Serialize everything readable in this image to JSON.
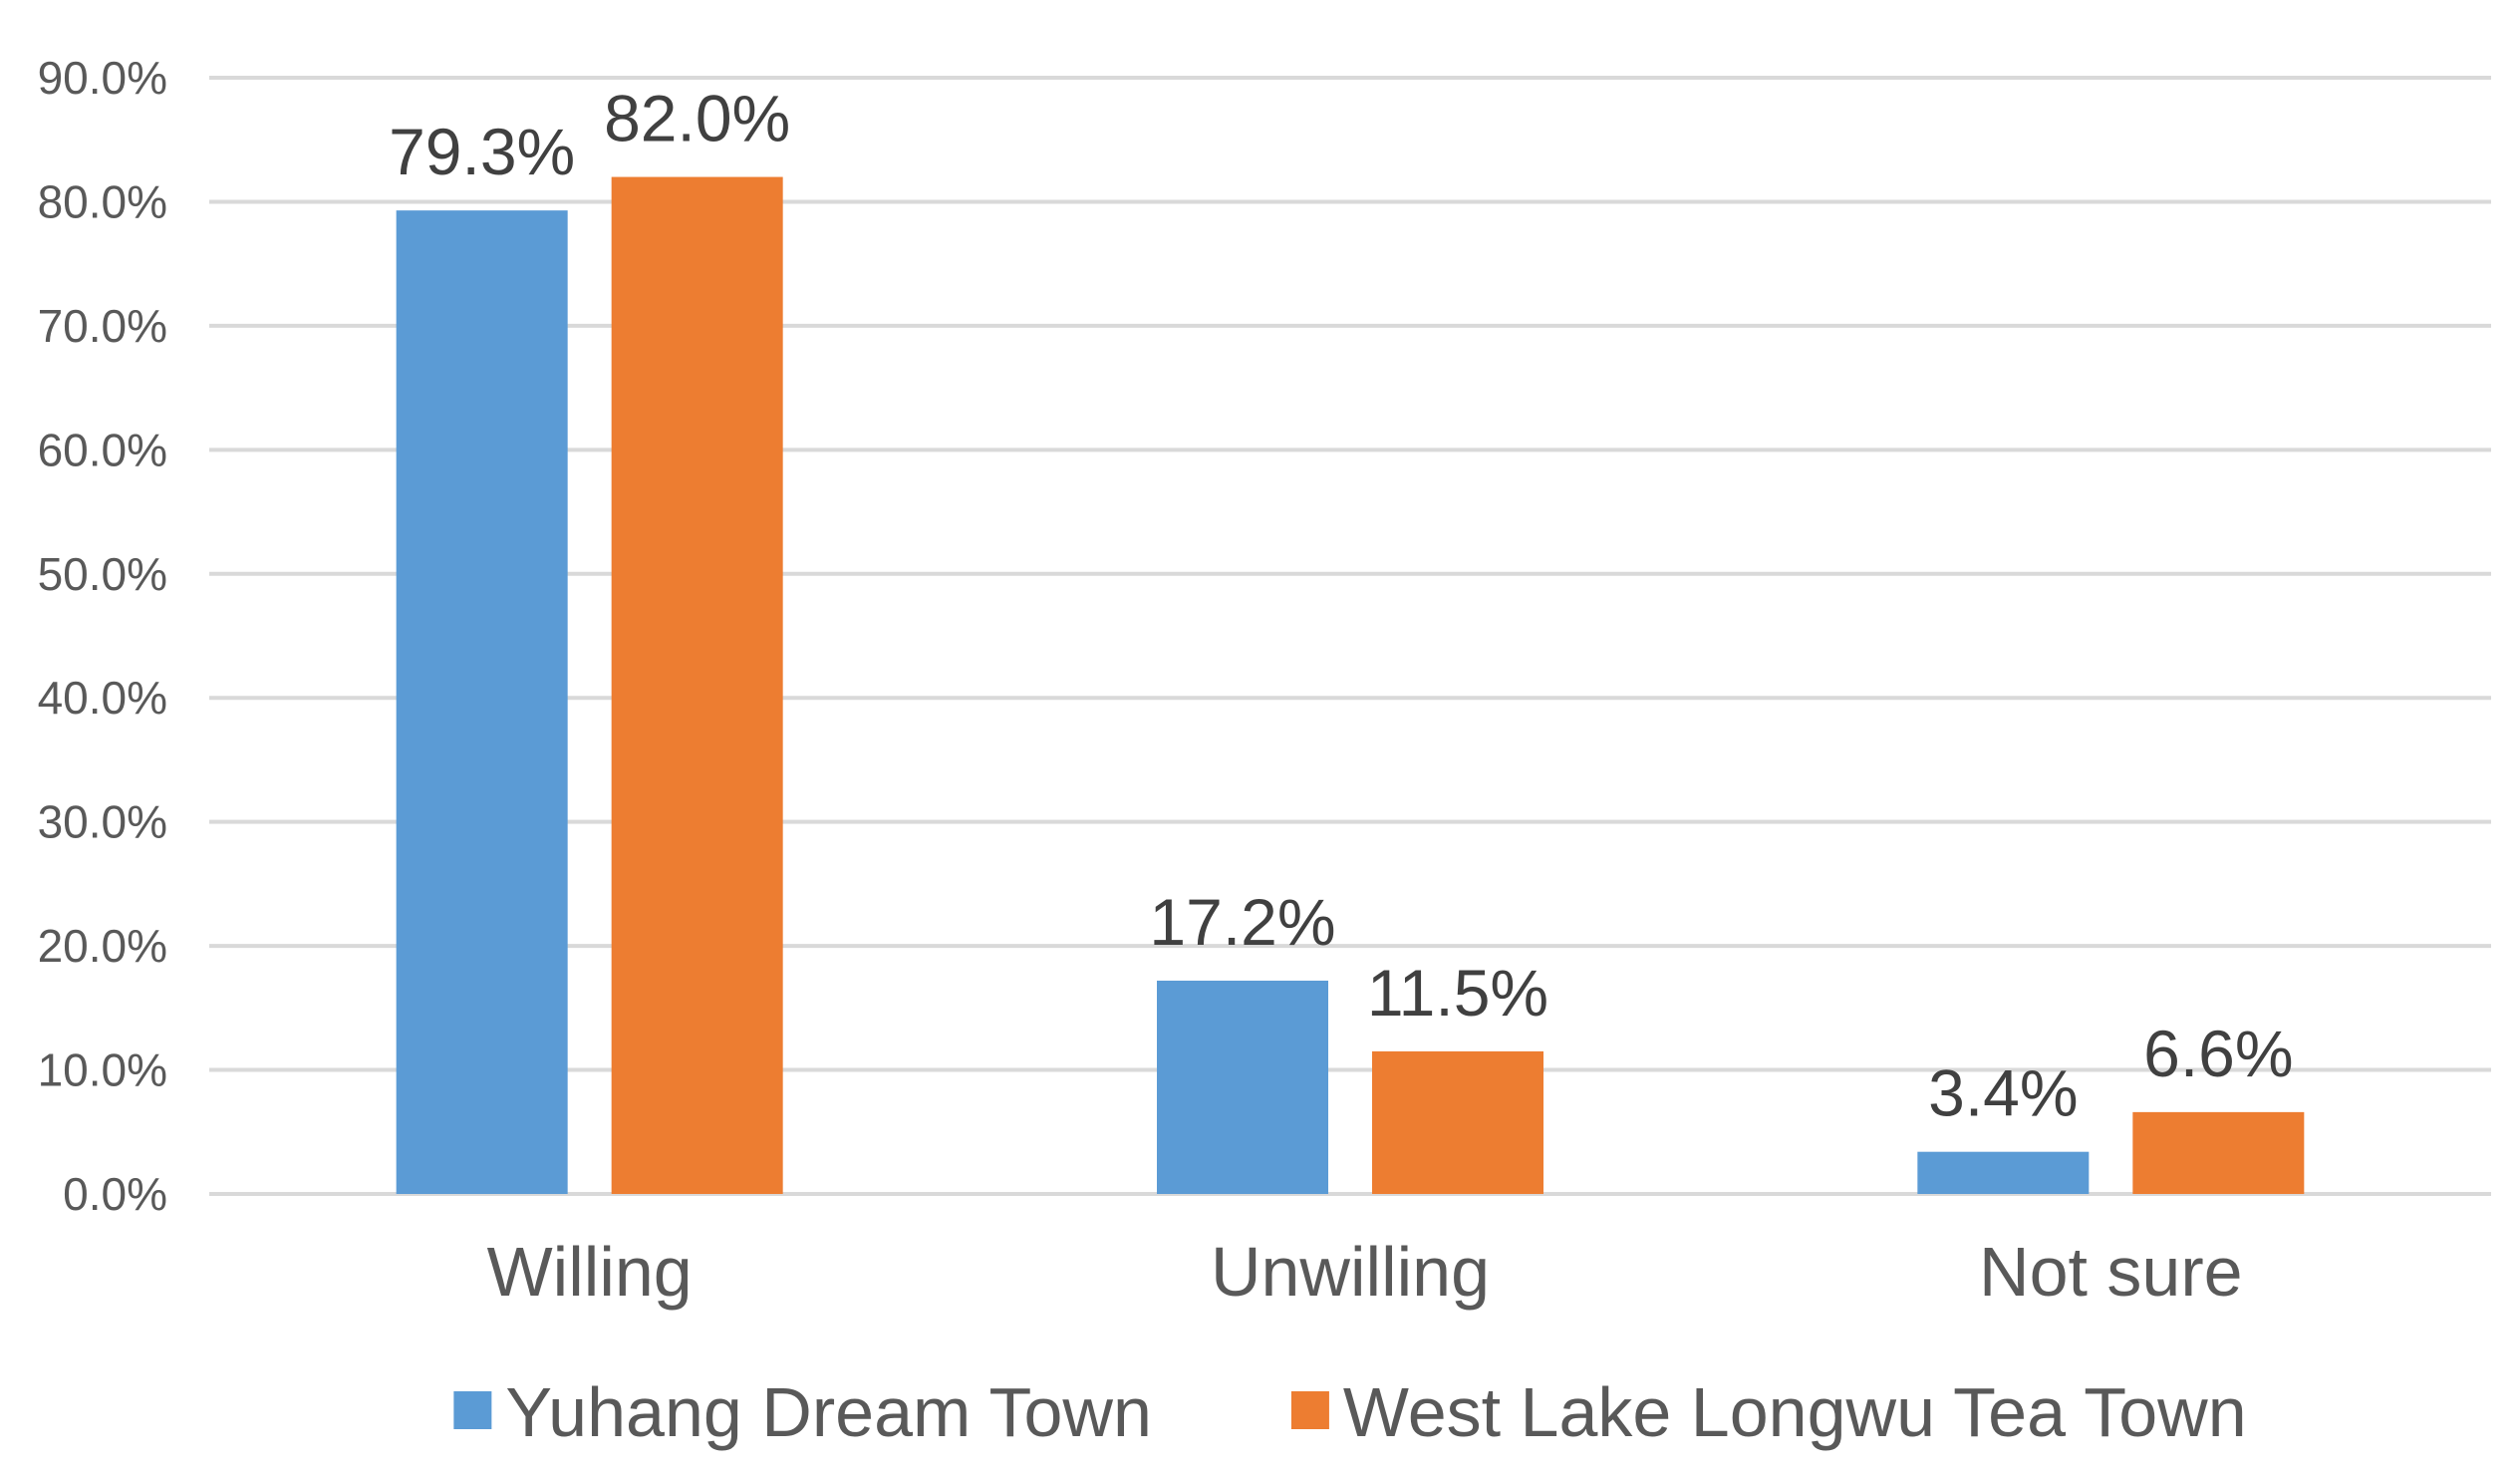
{
  "chart_data": {
    "type": "bar",
    "categories": [
      "Willing",
      "Unwilling",
      "Not sure"
    ],
    "series": [
      {
        "name": "Yuhang Dream Town",
        "color": "#5b9bd5",
        "values": [
          79.3,
          17.2,
          3.4
        ],
        "labels": [
          "79.3%",
          "17.2%",
          "3.4%"
        ]
      },
      {
        "name": "West Lake Longwu Tea Town",
        "color": "#ed7d31",
        "values": [
          82.0,
          11.5,
          6.6
        ],
        "labels": [
          "82.0%",
          "11.5%",
          "6.6%"
        ]
      }
    ],
    "ylim": [
      0,
      90
    ],
    "yticks": [
      0,
      10,
      20,
      30,
      40,
      50,
      60,
      70,
      80,
      90
    ],
    "ytick_labels": [
      "0.0%",
      "10.0%",
      "20.0%",
      "30.0%",
      "40.0%",
      "50.0%",
      "60.0%",
      "70.0%",
      "80.0%",
      "90.0%"
    ],
    "grid": true,
    "legend_position": "bottom"
  }
}
